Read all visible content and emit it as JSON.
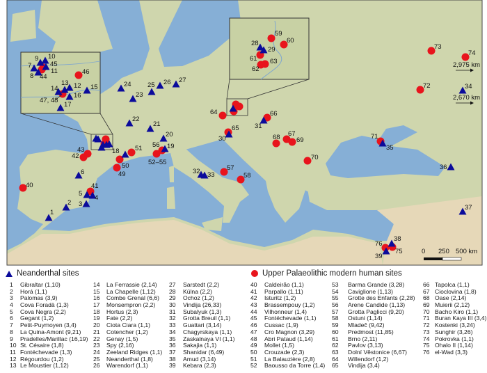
{
  "colors": {
    "neanderthal": "#0b0b9b",
    "modern_human": "#e8141c",
    "sea": "#86afd6",
    "land": "#cfd6ad",
    "desert": "#e6d8b8"
  },
  "map": {
    "labels": [
      "40",
      "41",
      "42",
      "43",
      "51",
      "50",
      "49",
      "52–55",
      "56",
      "57",
      "58",
      "64",
      "65",
      "66",
      "68",
      "67",
      "69",
      "70",
      "71",
      "72",
      "73",
      "74",
      "76",
      "75",
      "45",
      "44",
      "46",
      "47, 48",
      "59",
      "60",
      "61",
      "62",
      "63",
      "1",
      "2",
      "3",
      "5",
      "4",
      "6",
      "18",
      "19",
      "20",
      "21",
      "22",
      "23",
      "24",
      "25",
      "26",
      "27",
      "32",
      "33",
      "30",
      "31",
      "35",
      "34",
      "36",
      "37",
      "38",
      "39",
      "9",
      "10",
      "7",
      "8",
      "11",
      "14",
      "13",
      "12",
      "16",
      "15",
      "17",
      "28",
      "29"
    ],
    "distance_1": "2,975 km",
    "distance_2": "2,670 km",
    "scale": {
      "zero": "0",
      "mid": "250",
      "end": "500 km"
    }
  },
  "legend": {
    "neanderthal": {
      "title": "Neanderthal sites",
      "items": [
        {
          "num": "1",
          "name": "Gibraltar (1,10)"
        },
        {
          "num": "2",
          "name": "Horá (1,1)"
        },
        {
          "num": "3",
          "name": "Palomas (3,9)"
        },
        {
          "num": "4",
          "name": "Cova Foradà (1,3)"
        },
        {
          "num": "5",
          "name": "Cova Negra (2,2)"
        },
        {
          "num": "6",
          "name": "Gegant (1,2)"
        },
        {
          "num": "7",
          "name": "Petit-Puymoyen (3,4)"
        },
        {
          "num": "8",
          "name": "La Quina-Amont (9,21)"
        },
        {
          "num": "9",
          "name": "Pradelles/Marillac (16,19)"
        },
        {
          "num": "10",
          "name": "St. Césaire (1,8)"
        },
        {
          "num": "11",
          "name": "Fontéchevade (1,3)"
        },
        {
          "num": "12",
          "name": "Régourdou (1,2)"
        },
        {
          "num": "13",
          "name": "Le Moustier (1,12)"
        },
        {
          "num": "14",
          "name": "La Ferrassie (2,14)"
        },
        {
          "num": "15",
          "name": "La Chapelle (1,12)"
        },
        {
          "num": "16",
          "name": "Combe Grenal (6,6)"
        },
        {
          "num": "17",
          "name": "Monsempron (2,2)"
        },
        {
          "num": "18",
          "name": "Hortus (2,3)"
        },
        {
          "num": "19",
          "name": "Fate (2,2)"
        },
        {
          "num": "20",
          "name": "Ciota Ciara (1,1)"
        },
        {
          "num": "21",
          "name": "Cotencher (1,2)"
        },
        {
          "num": "22",
          "name": "Genay (1,5)"
        },
        {
          "num": "23",
          "name": "Spy (2,16)"
        },
        {
          "num": "24",
          "name": "Zeeland Ridges (1,1)"
        },
        {
          "num": "25",
          "name": "Neanderthal (1,8)"
        },
        {
          "num": "26",
          "name": "Warendorf (1,1)"
        },
        {
          "num": "27",
          "name": "Sarstedt (2,2)"
        },
        {
          "num": "28",
          "name": "Külna (2,2)"
        },
        {
          "num": "29",
          "name": "Ochoz (1,2)"
        },
        {
          "num": "30",
          "name": "Vindija (26,33)"
        },
        {
          "num": "31",
          "name": "Subalyuk (1,3)"
        },
        {
          "num": "32",
          "name": "Grotta Breuil (1,1)"
        },
        {
          "num": "33",
          "name": "Guattari (3,14)"
        },
        {
          "num": "34",
          "name": "Chagyrskaya (1,1)"
        },
        {
          "num": "35",
          "name": "Zaskalnaya VI (1,1)"
        },
        {
          "num": "36",
          "name": "Sakajia (1,1)"
        },
        {
          "num": "37",
          "name": "Shanidar (6,49)"
        },
        {
          "num": "38",
          "name": "Amud (3,14)"
        },
        {
          "num": "39",
          "name": "Kebara (2,3)"
        }
      ]
    },
    "modern": {
      "title": "Upper Palaeolithic modern human sites",
      "items": [
        {
          "num": "40",
          "name": "Caldeirão (1,1)"
        },
        {
          "num": "41",
          "name": "Parpallo (1,11)"
        },
        {
          "num": "42",
          "name": "Isturitz (1,2)"
        },
        {
          "num": "43",
          "name": "Brassempouy (1,2)"
        },
        {
          "num": "44",
          "name": "Vilhonneur (1,4)"
        },
        {
          "num": "45",
          "name": "Fontéchevade (1,1)"
        },
        {
          "num": "46",
          "name": "Cussac (1,9)"
        },
        {
          "num": "47",
          "name": "Cro Magnon (3,29)"
        },
        {
          "num": "48",
          "name": "Abri Pataud (1,14)"
        },
        {
          "num": "49",
          "name": "Mollet (1,5)"
        },
        {
          "num": "50",
          "name": "Crouzade (2,3)"
        },
        {
          "num": "51",
          "name": "La Balauzière (2,8)"
        },
        {
          "num": "52",
          "name": "Baousso da Torre (1,4)"
        },
        {
          "num": "53",
          "name": "Barma Grande (3,28)"
        },
        {
          "num": "54",
          "name": "Caviglione (1,13)"
        },
        {
          "num": "55",
          "name": "Grotte des Enfants (2,28)"
        },
        {
          "num": "56",
          "name": "Arene Candide (1,13)"
        },
        {
          "num": "57",
          "name": "Grotta Paglicci (9,20)"
        },
        {
          "num": "58",
          "name": "Ostuni (1,14)"
        },
        {
          "num": "59",
          "name": "Mladeč (9,42)"
        },
        {
          "num": "60",
          "name": "Predmost (11,85)"
        },
        {
          "num": "61",
          "name": "Brno (2,11)"
        },
        {
          "num": "62",
          "name": "Pavlov (3,13)"
        },
        {
          "num": "63",
          "name": "Dolní Věstonice (6,67)"
        },
        {
          "num": "64",
          "name": "Willendorf (1,2)"
        },
        {
          "num": "65",
          "name": "Vindija (3,4)"
        },
        {
          "num": "66",
          "name": "Tapolca (1,1)"
        },
        {
          "num": "67",
          "name": "Cioclovina (1,8)"
        },
        {
          "num": "68",
          "name": "Oase (2,14)"
        },
        {
          "num": "69",
          "name": "Muierii (2,12)"
        },
        {
          "num": "70",
          "name": "Bacho Kiro (1,1)"
        },
        {
          "num": "71",
          "name": "Buran Kaya III (3,4)"
        },
        {
          "num": "72",
          "name": "Kostenki (3,24)"
        },
        {
          "num": "73",
          "name": "Sunghir (3,26)"
        },
        {
          "num": "74",
          "name": "Pokrovka (1,1)"
        },
        {
          "num": "75",
          "name": "Ohalo II (1,14)"
        },
        {
          "num": "76",
          "name": "el-Wad (3,3)"
        }
      ]
    }
  }
}
